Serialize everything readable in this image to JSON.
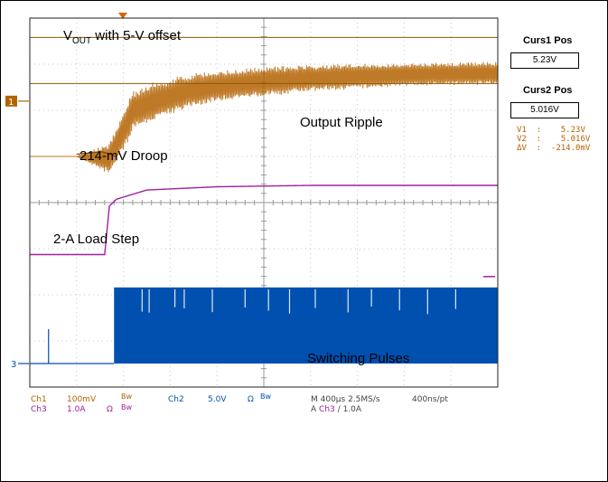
{
  "chart_data": {
    "type": "line",
    "title": "",
    "xlabel": "",
    "ylabel": "",
    "grid": true,
    "divisions": {
      "x": 10,
      "y": 8
    },
    "annotations": {
      "vout_prefix": "V",
      "vout_sub": "OUT",
      "vout_suffix": " with 5-V offset",
      "droop": "214-mV Droop",
      "ripple": "Output Ripple",
      "load_step": "2-A Load Step",
      "switching": "Switching Pulses"
    },
    "series": [
      {
        "name": "Ch1",
        "color": "#b36200",
        "role": "output voltage ripple",
        "t_div": [
          0,
          1.0,
          1.7,
          2.0,
          2.2,
          2.8,
          3.4,
          4.0,
          5.0,
          6.0,
          7.0,
          8.0,
          9.0,
          10.0
        ],
        "y_div_center": [
          -1.0,
          -1.0,
          -1.05,
          -0.45,
          0.0,
          0.25,
          0.42,
          0.52,
          0.62,
          0.7,
          0.74,
          0.77,
          0.79,
          0.8
        ],
        "y_div_amplitude": [
          0,
          0,
          0.35,
          0.45,
          0.45,
          0.42,
          0.38,
          0.35,
          0.33,
          0.3,
          0.28,
          0.26,
          0.25,
          0.25
        ]
      },
      {
        "name": "Ch3",
        "color": "#a020a0",
        "role": "load current step",
        "t_div": [
          0,
          1.6,
          1.7,
          1.85,
          2.5,
          4.0,
          6.0,
          10.0
        ],
        "y_div": [
          -0.5,
          -0.5,
          0.55,
          0.7,
          0.9,
          0.97,
          1.0,
          1.0
        ]
      },
      {
        "name": "Ch2",
        "color": "#0050b0",
        "role": "switching node pulses",
        "pulse_start_div": 1.8,
        "low_div": -1.0,
        "high_div": 0.65
      }
    ],
    "cursors": {
      "curs1_label": "Curs1 Pos",
      "curs1_value": "5.23V",
      "curs2_label": "Curs2 Pos",
      "curs2_value": "5.016V",
      "readout_v1": "V1  :    5.23V",
      "readout_v2": "V2  :    5.016V",
      "readout_dv": "ΔV  :  -214.0mV",
      "cursor1_div": 1.58,
      "cursor2_div": 0.58
    },
    "settings": {
      "ch1": "Ch1",
      "ch1_scale": "100mV",
      "ch1_bw": "Bw",
      "ch2": "Ch2",
      "ch2_scale": "5.0V",
      "ch2_ohm": "Ω",
      "ch2_bw": "Bw",
      "ch3": "Ch3",
      "ch3_scale": "1.0A",
      "ch3_ohm": "Ω",
      "ch3_bw": "Bw",
      "timebase": "M 400µs 2.5MS/s",
      "points": "400ns/pt",
      "trigger": "A",
      "trigger_ch": "Ch3",
      "trigger_slope": "∕",
      "trigger_level": "1.0A",
      "marker_1": "1",
      "marker_3": "3"
    }
  }
}
